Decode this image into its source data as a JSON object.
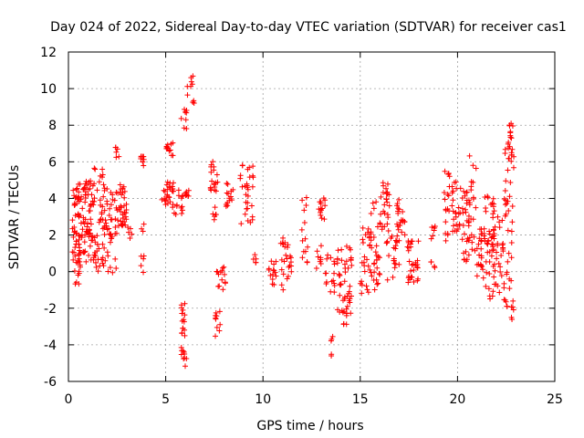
{
  "chart_data": {
    "type": "scatter",
    "title": "Day 024 of 2022, Sidereal Day-to-day VTEC variation (SDTVAR) for receiver cas1",
    "xlabel": "GPS time / hours",
    "ylabel": "SDTVAR / TECUs",
    "xlim": [
      0,
      25
    ],
    "ylim": [
      -6,
      12
    ],
    "x_ticks": [
      0,
      5,
      10,
      15,
      20,
      25
    ],
    "y_ticks": [
      -6,
      -4,
      -2,
      0,
      2,
      4,
      6,
      8,
      10,
      12
    ],
    "grid": true,
    "marker": "+",
    "color": "#ff0000",
    "clusters": [
      {
        "x": [
          0.2,
          0.7
        ],
        "y": [
          -0.7,
          4.8
        ],
        "n": 70
      },
      {
        "x": [
          0.7,
          1.3
        ],
        "y": [
          0.5,
          5.0
        ],
        "n": 60
      },
      {
        "x": [
          1.3,
          2.0
        ],
        "y": [
          0.0,
          5.7
        ],
        "n": 60
      },
      {
        "x": [
          2.0,
          2.5
        ],
        "y": [
          -0.2,
          4.5
        ],
        "n": 30
      },
      {
        "x": [
          2.4,
          2.6
        ],
        "y": [
          6.2,
          6.9
        ],
        "n": 6
      },
      {
        "x": [
          2.5,
          3.0
        ],
        "y": [
          2.5,
          4.8
        ],
        "n": 35
      },
      {
        "x": [
          3.0,
          3.3
        ],
        "y": [
          1.8,
          2.9
        ],
        "n": 5
      },
      {
        "x": [
          3.7,
          3.9
        ],
        "y": [
          5.7,
          6.4
        ],
        "n": 8
      },
      {
        "x": [
          3.7,
          3.9
        ],
        "y": [
          -0.1,
          2.6
        ],
        "n": 8
      },
      {
        "x": [
          4.8,
          5.4
        ],
        "y": [
          3.5,
          4.9
        ],
        "n": 30
      },
      {
        "x": [
          5.0,
          5.4
        ],
        "y": [
          6.3,
          7.1
        ],
        "n": 12
      },
      {
        "x": [
          5.4,
          5.9
        ],
        "y": [
          3.0,
          4.5
        ],
        "n": 12
      },
      {
        "x": [
          5.7,
          6.2
        ],
        "y": [
          4.0,
          4.6
        ],
        "n": 8
      },
      {
        "x": [
          5.8,
          6.1
        ],
        "y": [
          7.8,
          9.0
        ],
        "n": 8
      },
      {
        "x": [
          5.8,
          6.1
        ],
        "y": [
          -5.4,
          -1.5
        ],
        "n": 25
      },
      {
        "x": [
          6.1,
          6.5
        ],
        "y": [
          9.0,
          10.9
        ],
        "n": 10
      },
      {
        "x": [
          7.3,
          7.7
        ],
        "y": [
          4.4,
          6.2
        ],
        "n": 18
      },
      {
        "x": [
          7.4,
          7.6
        ],
        "y": [
          2.8,
          3.6
        ],
        "n": 6
      },
      {
        "x": [
          7.5,
          7.8
        ],
        "y": [
          -3.6,
          -1.8
        ],
        "n": 10
      },
      {
        "x": [
          7.6,
          8.1
        ],
        "y": [
          -1.0,
          0.3
        ],
        "n": 14
      },
      {
        "x": [
          8.1,
          8.5
        ],
        "y": [
          3.5,
          5.0
        ],
        "n": 14
      },
      {
        "x": [
          8.8,
          9.5
        ],
        "y": [
          2.5,
          5.9
        ],
        "n": 30
      },
      {
        "x": [
          9.5,
          9.7
        ],
        "y": [
          0.1,
          1.0
        ],
        "n": 5
      },
      {
        "x": [
          10.3,
          10.7
        ],
        "y": [
          -0.8,
          0.8
        ],
        "n": 14
      },
      {
        "x": [
          10.9,
          11.5
        ],
        "y": [
          -1.0,
          2.0
        ],
        "n": 25
      },
      {
        "x": [
          12.0,
          12.4
        ],
        "y": [
          0.2,
          4.2
        ],
        "n": 14
      },
      {
        "x": [
          12.7,
          13.0
        ],
        "y": [
          0.0,
          1.5
        ],
        "n": 8
      },
      {
        "x": [
          12.8,
          13.2
        ],
        "y": [
          2.8,
          4.2
        ],
        "n": 14
      },
      {
        "x": [
          13.2,
          13.7
        ],
        "y": [
          -1.3,
          1.0
        ],
        "n": 16
      },
      {
        "x": [
          13.5,
          13.7
        ],
        "y": [
          -4.7,
          -3.2
        ],
        "n": 5
      },
      {
        "x": [
          13.8,
          14.6
        ],
        "y": [
          -2.3,
          1.5
        ],
        "n": 45
      },
      {
        "x": [
          14.1,
          14.4
        ],
        "y": [
          -2.9,
          -1.5
        ],
        "n": 6
      },
      {
        "x": [
          15.0,
          15.5
        ],
        "y": [
          -1.3,
          2.4
        ],
        "n": 25
      },
      {
        "x": [
          15.5,
          16.0
        ],
        "y": [
          -1.0,
          4.0
        ],
        "n": 30
      },
      {
        "x": [
          16.0,
          16.5
        ],
        "y": [
          1.5,
          5.2
        ],
        "n": 30
      },
      {
        "x": [
          16.4,
          17.0
        ],
        "y": [
          -0.5,
          2.2
        ],
        "n": 20
      },
      {
        "x": [
          16.8,
          17.3
        ],
        "y": [
          2.0,
          4.1
        ],
        "n": 20
      },
      {
        "x": [
          17.4,
          18.0
        ],
        "y": [
          -0.6,
          2.0
        ],
        "n": 30
      },
      {
        "x": [
          18.6,
          18.9
        ],
        "y": [
          0.2,
          2.5
        ],
        "n": 10
      },
      {
        "x": [
          19.3,
          19.6
        ],
        "y": [
          1.6,
          5.5
        ],
        "n": 18
      },
      {
        "x": [
          19.7,
          20.2
        ],
        "y": [
          2.2,
          5.0
        ],
        "n": 25
      },
      {
        "x": [
          20.2,
          20.6
        ],
        "y": [
          0.5,
          4.6
        ],
        "n": 30
      },
      {
        "x": [
          20.6,
          21.0
        ],
        "y": [
          1.0,
          6.4
        ],
        "n": 20
      },
      {
        "x": [
          21.0,
          21.4
        ],
        "y": [
          -0.5,
          2.5
        ],
        "n": 25
      },
      {
        "x": [
          21.4,
          21.9
        ],
        "y": [
          -1.6,
          4.9
        ],
        "n": 35
      },
      {
        "x": [
          21.8,
          22.4
        ],
        "y": [
          -2.0,
          3.0
        ],
        "n": 40
      },
      {
        "x": [
          22.4,
          22.9
        ],
        "y": [
          -2.9,
          8.1
        ],
        "n": 45
      },
      {
        "x": [
          22.6,
          22.9
        ],
        "y": [
          6.0,
          8.1
        ],
        "n": 15
      }
    ]
  }
}
